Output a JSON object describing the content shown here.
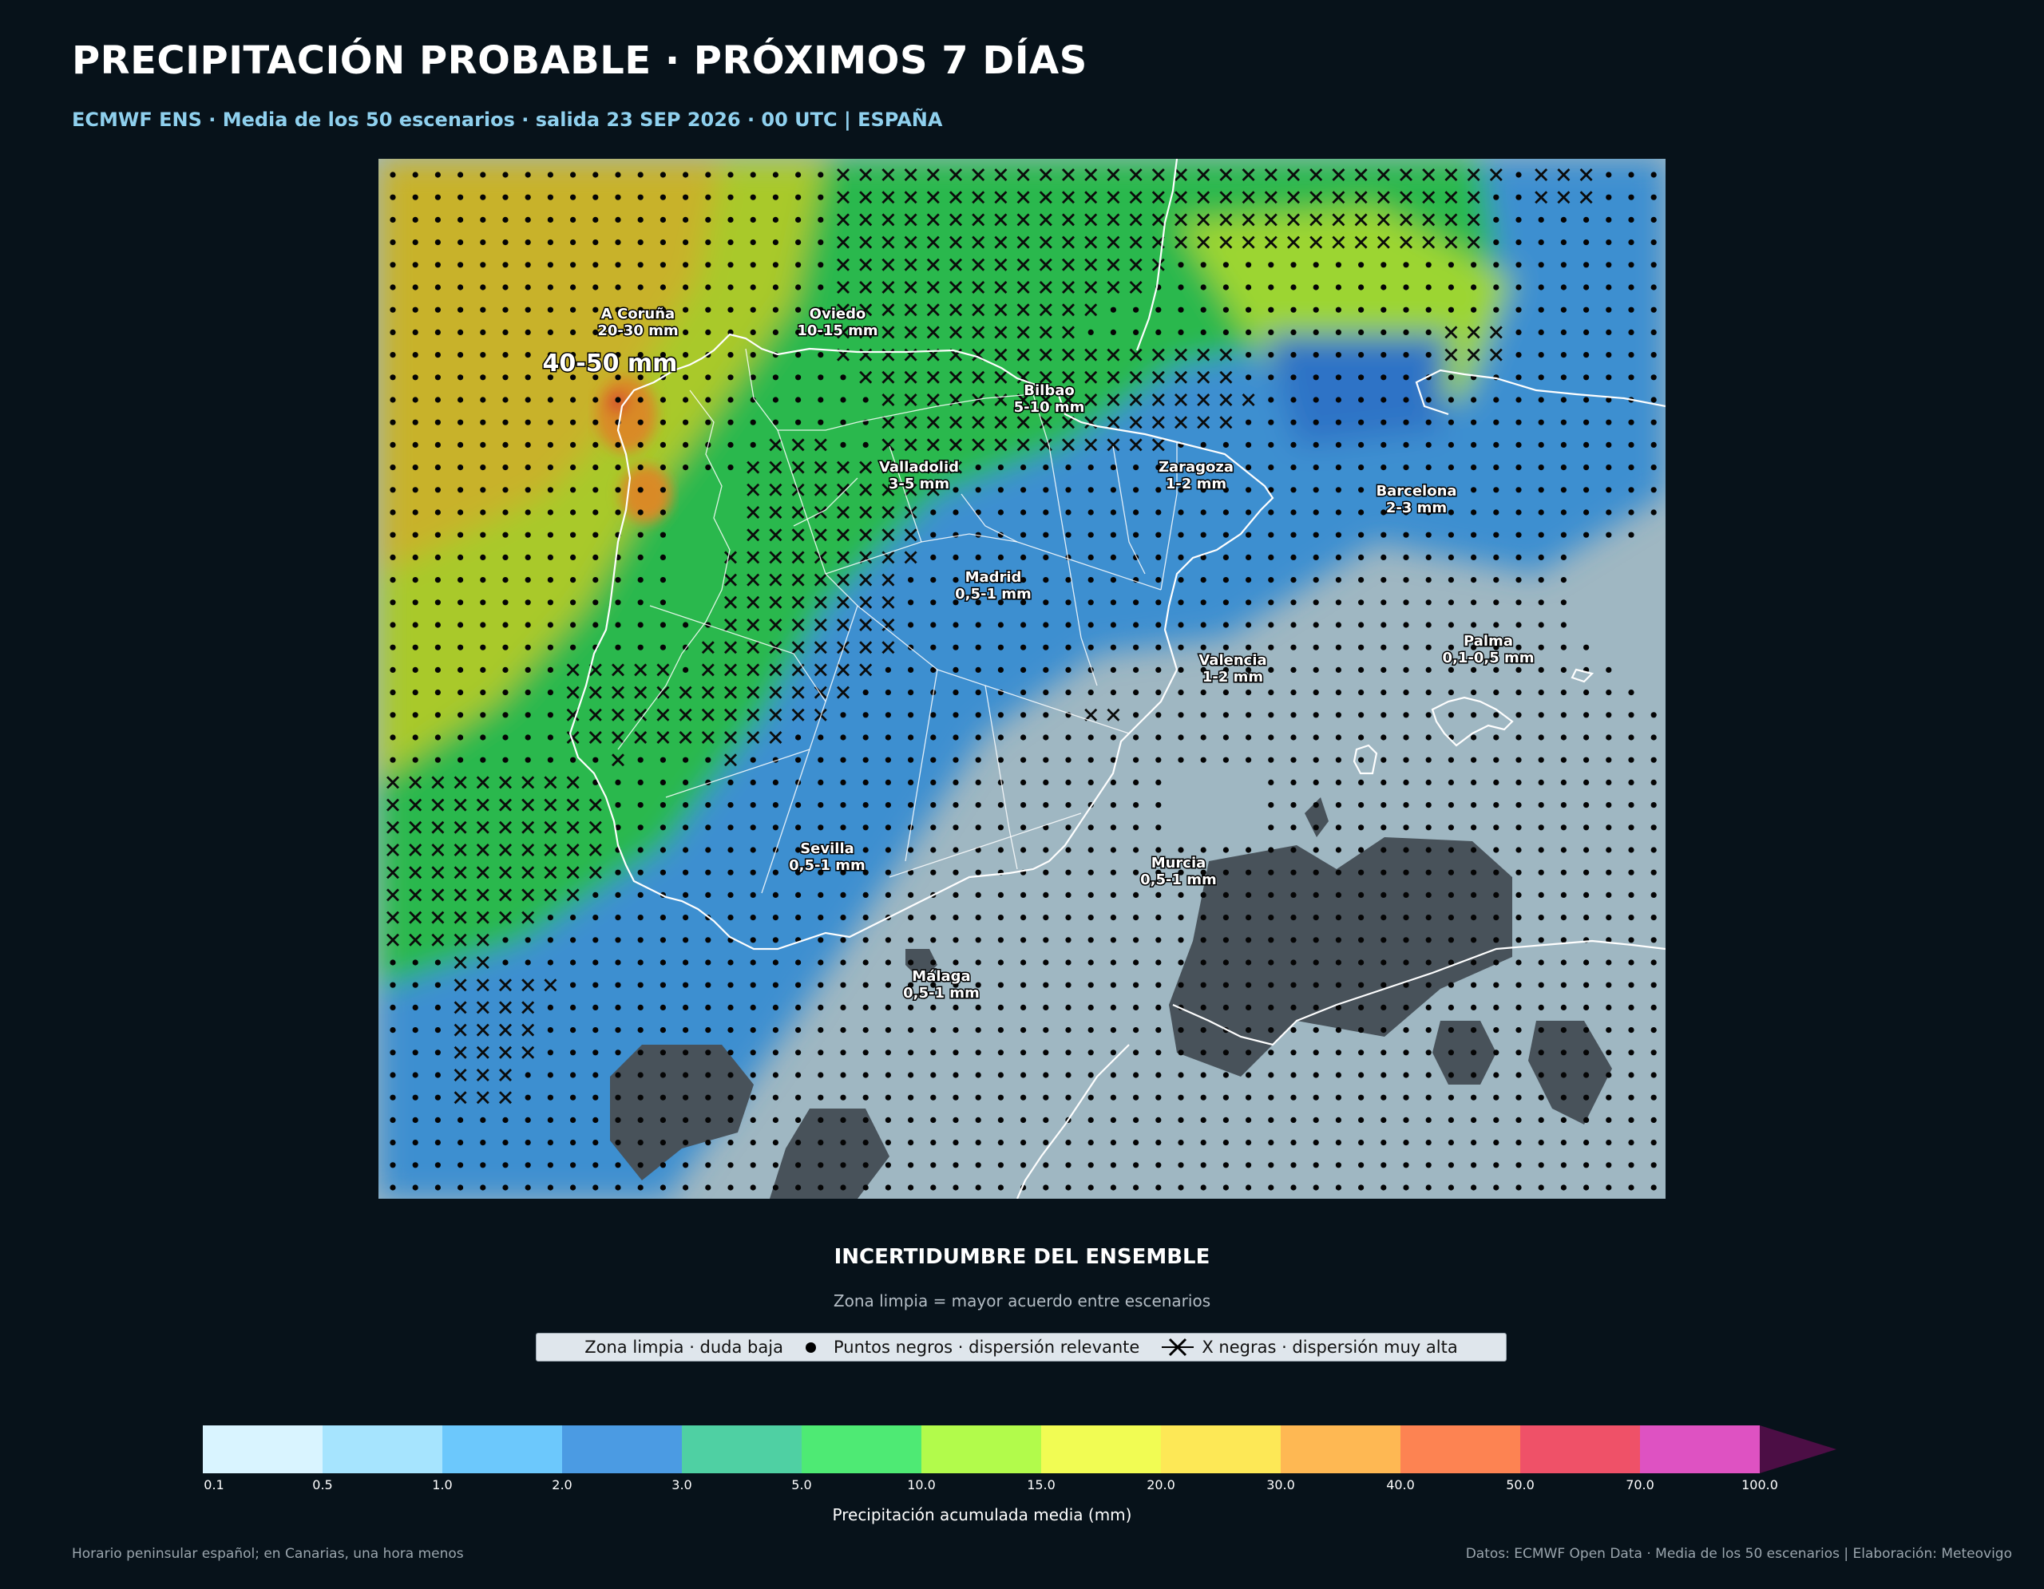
{
  "header": {
    "title": "PRECIPITACIÓN PROBABLE · PRÓXIMOS 7 DÍAS",
    "subtitle": "ECMWF ENS · Media de los 50 escenarios · salida 23 SEP 2026 · 00 UTC | ESPAÑA"
  },
  "map": {
    "highlight_label": "40-50 mm",
    "cities": [
      {
        "name": "A Coruña",
        "value": "20-30 mm"
      },
      {
        "name": "Oviedo",
        "value": "10-15 mm"
      },
      {
        "name": "Bilbao",
        "value": "5-10 mm"
      },
      {
        "name": "Valladolid",
        "value": "3-5 mm"
      },
      {
        "name": "Zaragoza",
        "value": "1-2 mm"
      },
      {
        "name": "Barcelona",
        "value": "2-3 mm"
      },
      {
        "name": "Madrid",
        "value": "0,5-1 mm"
      },
      {
        "name": "Palma",
        "value": "0,1-0,5 mm"
      },
      {
        "name": "Valencia",
        "value": "1-2 mm"
      },
      {
        "name": "Sevilla",
        "value": "0,5-1 mm"
      },
      {
        "name": "Murcia",
        "value": "0,5-1 mm"
      },
      {
        "name": "Málaga",
        "value": "0,5-1 mm"
      }
    ]
  },
  "uncertainty": {
    "title": "INCERTIDUMBRE DEL ENSEMBLE",
    "subtitle": "Zona limpia = mayor acuerdo entre escenarios",
    "legend": [
      {
        "label": "Zona limpia · duda baja",
        "icon": "none"
      },
      {
        "label": "Puntos negros · dispersión relevante",
        "icon": "dot-icon"
      },
      {
        "label": "X negras · dispersión muy alta",
        "icon": "x-icon"
      }
    ]
  },
  "colorbar": {
    "label": "Precipitación acumulada media (mm)",
    "ticks": [
      "0.1",
      "0.5",
      "1.0",
      "2.0",
      "3.0",
      "5.0",
      "10.0",
      "15.0",
      "20.0",
      "30.0",
      "40.0",
      "50.0",
      "70.0",
      "100.0"
    ],
    "colors": [
      "#d9f4ff",
      "#a6e4fe",
      "#6cc8fc",
      "#4b9be3",
      "#4fd0a3",
      "#4eea74",
      "#b2fb4b",
      "#f1fc53",
      "#fde856",
      "#feb853",
      "#fd8352",
      "#ef5168",
      "#de52c2",
      "#4c0e45"
    ]
  },
  "footer": {
    "left": "Horario peninsular español; en Canarias, una hora menos",
    "right": "Datos: ECMWF Open Data · Media de los 50 escenarios | Elaboración: Meteovigo"
  }
}
